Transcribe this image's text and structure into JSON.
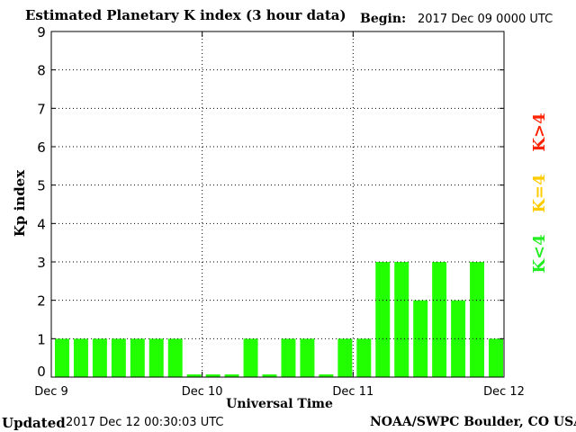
{
  "header": {
    "title": "Estimated Planetary K index (3 hour data)",
    "begin_label": "Begin:",
    "begin_value": "2017 Dec 09 0000 UTC"
  },
  "footer": {
    "updated_label": "Updated",
    "updated_value": "2017 Dec 12 00:30:03 UTC",
    "credit": "NOAA/SWPC Boulder, CO USA"
  },
  "legend": {
    "high": "K>4",
    "equal": "K=4",
    "low": "K<4"
  },
  "colors": {
    "bar": "#22ff00",
    "bar_outline": "#00aa00",
    "grid": "#000000",
    "high": "#ff2200",
    "equal": "#ffcc00",
    "low": "#22ee22"
  },
  "chart_data": {
    "type": "bar",
    "ylabel": "Kp index",
    "xlabel": "Universal Time",
    "ylim": [
      0,
      9
    ],
    "yticks": [
      "0",
      "1",
      "2",
      "3",
      "4",
      "5",
      "6",
      "7",
      "8",
      "9"
    ],
    "xticks": [
      "Dec 9",
      "Dec 10",
      "Dec 11",
      "Dec 12"
    ],
    "grid": "dotted",
    "values": [
      1,
      1,
      1,
      1,
      1,
      1,
      1,
      0.07,
      0.07,
      0.07,
      1,
      0.07,
      1,
      1,
      0.07,
      1,
      1,
      3,
      3,
      2,
      3,
      2,
      3,
      1
    ]
  }
}
